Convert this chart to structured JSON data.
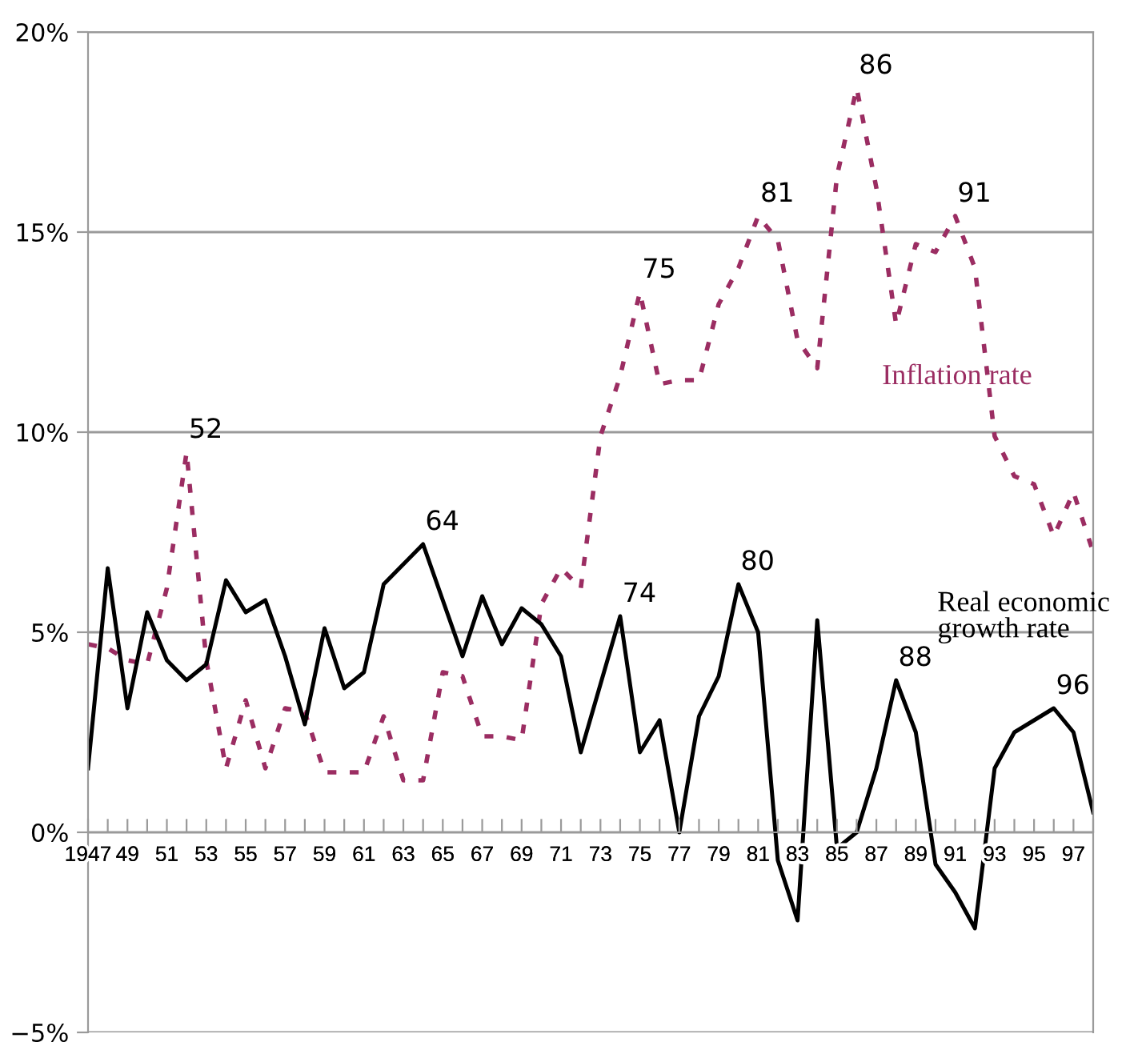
{
  "chart_data": {
    "type": "line",
    "x": [
      1947,
      1948,
      1949,
      1950,
      1951,
      1952,
      1953,
      1954,
      1955,
      1956,
      1957,
      1958,
      1959,
      1960,
      1961,
      1962,
      1963,
      1964,
      1965,
      1966,
      1967,
      1968,
      1969,
      1970,
      1971,
      1972,
      1973,
      1974,
      1975,
      1976,
      1977,
      1978,
      1979,
      1980,
      1981,
      1982,
      1983,
      1984,
      1985,
      1986,
      1987,
      1988,
      1989,
      1990,
      1991,
      1992,
      1993,
      1994,
      1995,
      1996,
      1997,
      1998
    ],
    "series": [
      {
        "name": "Inflation rate",
        "color": "#9b2d62",
        "line_style": "dashed",
        "values": [
          4.7,
          4.6,
          4.3,
          4.2,
          6.1,
          9.5,
          4.3,
          1.6,
          3.3,
          1.6,
          3.1,
          3.0,
          1.5,
          1.5,
          1.5,
          2.9,
          1.3,
          1.3,
          4.0,
          3.9,
          2.4,
          2.4,
          2.3,
          5.7,
          6.6,
          6.1,
          9.9,
          11.4,
          13.5,
          11.2,
          11.3,
          11.3,
          13.2,
          14.1,
          15.4,
          14.8,
          12.3,
          11.6,
          16.4,
          18.6,
          16.1,
          12.7,
          14.7,
          14.5,
          15.4,
          14.1,
          9.9,
          8.9,
          8.7,
          7.4,
          8.5,
          7.0
        ]
      },
      {
        "name": "Real economic\ngrowth rate",
        "color": "#000000",
        "line_style": "solid",
        "values": [
          1.6,
          6.6,
          3.1,
          5.5,
          4.3,
          3.8,
          4.2,
          6.3,
          5.5,
          5.8,
          4.4,
          2.7,
          5.1,
          3.6,
          4.0,
          6.2,
          6.7,
          7.2,
          5.8,
          4.4,
          5.9,
          4.7,
          5.6,
          5.2,
          4.4,
          2.0,
          3.7,
          5.4,
          2.0,
          2.8,
          0.0,
          2.9,
          3.9,
          6.2,
          5.0,
          -0.7,
          -2.2,
          5.3,
          -0.4,
          0.0,
          1.6,
          3.8,
          2.5,
          -0.8,
          -1.5,
          -2.4,
          1.6,
          2.5,
          2.8,
          3.1,
          2.5,
          0.5
        ]
      }
    ],
    "annotations": [
      {
        "text": "52",
        "x": 1952,
        "y": 9.5
      },
      {
        "text": "64",
        "x": 1964,
        "y": 7.2
      },
      {
        "text": "74",
        "x": 1974,
        "y": 5.4
      },
      {
        "text": "75",
        "x": 1975,
        "y": 13.5
      },
      {
        "text": "80",
        "x": 1980,
        "y": 6.2
      },
      {
        "text": "81",
        "x": 1981,
        "y": 15.4
      },
      {
        "text": "86",
        "x": 1986,
        "y": 18.6
      },
      {
        "text": "88",
        "x": 1988,
        "y": 3.8
      },
      {
        "text": "91",
        "x": 1991,
        "y": 15.4
      },
      {
        "text": "96",
        "x": 1996,
        "y": 3.1
      }
    ],
    "xlim": [
      1947,
      1998
    ],
    "xticks": [
      {
        "value": 1947,
        "label": "1947"
      },
      {
        "value": 1948,
        "label": null
      },
      {
        "value": 1949,
        "label": "49"
      },
      {
        "value": 1950,
        "label": null
      },
      {
        "value": 1951,
        "label": "51"
      },
      {
        "value": 1952,
        "label": null
      },
      {
        "value": 1953,
        "label": "53"
      },
      {
        "value": 1954,
        "label": null
      },
      {
        "value": 1955,
        "label": "55"
      },
      {
        "value": 1956,
        "label": null
      },
      {
        "value": 1957,
        "label": "57"
      },
      {
        "value": 1958,
        "label": null
      },
      {
        "value": 1959,
        "label": "59"
      },
      {
        "value": 1960,
        "label": null
      },
      {
        "value": 1961,
        "label": "61"
      },
      {
        "value": 1962,
        "label": null
      },
      {
        "value": 1963,
        "label": "63"
      },
      {
        "value": 1964,
        "label": null
      },
      {
        "value": 1965,
        "label": "65"
      },
      {
        "value": 1966,
        "label": null
      },
      {
        "value": 1967,
        "label": "67"
      },
      {
        "value": 1968,
        "label": null
      },
      {
        "value": 1969,
        "label": "69"
      },
      {
        "value": 1970,
        "label": null
      },
      {
        "value": 1971,
        "label": "71"
      },
      {
        "value": 1972,
        "label": null
      },
      {
        "value": 1973,
        "label": "73"
      },
      {
        "value": 1974,
        "label": null
      },
      {
        "value": 1975,
        "label": "75"
      },
      {
        "value": 1976,
        "label": null
      },
      {
        "value": 1977,
        "label": "77"
      },
      {
        "value": 1978,
        "label": null
      },
      {
        "value": 1979,
        "label": "79"
      },
      {
        "value": 1980,
        "label": null
      },
      {
        "value": 1981,
        "label": "81"
      },
      {
        "value": 1982,
        "label": null
      },
      {
        "value": 1983,
        "label": "83"
      },
      {
        "value": 1984,
        "label": null
      },
      {
        "value": 1985,
        "label": "85"
      },
      {
        "value": 1986,
        "label": null
      },
      {
        "value": 1987,
        "label": "87"
      },
      {
        "value": 1988,
        "label": null
      },
      {
        "value": 1989,
        "label": "89"
      },
      {
        "value": 1990,
        "label": null
      },
      {
        "value": 1991,
        "label": "91"
      },
      {
        "value": 1992,
        "label": null
      },
      {
        "value": 1993,
        "label": "93"
      },
      {
        "value": 1994,
        "label": null
      },
      {
        "value": 1995,
        "label": "95"
      },
      {
        "value": 1996,
        "label": null
      },
      {
        "value": 1997,
        "label": "97"
      },
      {
        "value": 1998,
        "label": null
      }
    ],
    "ylim": [
      -5,
      20
    ],
    "yticks": [
      {
        "value": -5,
        "label": "−5%"
      },
      {
        "value": 0,
        "label": "0%"
      },
      {
        "value": 5,
        "label": "5%"
      },
      {
        "value": 10,
        "label": "10%"
      },
      {
        "value": 15,
        "label": "15%"
      },
      {
        "value": 20,
        "label": "20%"
      }
    ],
    "grid": "y",
    "legend": false,
    "marker": "none"
  }
}
